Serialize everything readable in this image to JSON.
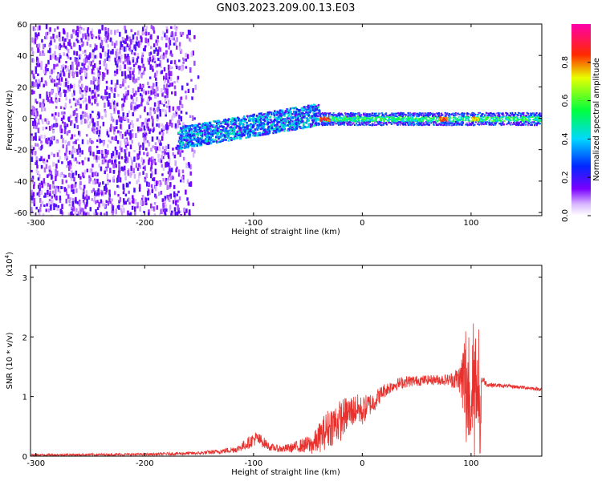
{
  "title": "GN03.2023.209.00.13.E03",
  "colors": {
    "snr_line": "#e8302c",
    "axes": "#000000"
  },
  "chart_data": [
    {
      "type": "heatmap",
      "title": "GN03.2023.209.00.13.E03",
      "xlabel": "Height of straight line (km)",
      "ylabel": "Frequency (Hz)",
      "xlim": [
        -305,
        165
      ],
      "ylim": [
        -62,
        60
      ],
      "x_ticks": [
        -300,
        -200,
        -100,
        0,
        100
      ],
      "x_tick_labels": [
        "-300",
        "-200",
        "-100",
        "0",
        "100"
      ],
      "y_ticks": [
        60,
        40,
        20,
        0,
        -20,
        -40,
        -60
      ],
      "y_tick_labels": [
        "60",
        "40",
        "20",
        "0",
        "-20",
        "-40",
        "-60"
      ],
      "colorbar": {
        "label": "Normalized spectral amplitude",
        "range": [
          0.0,
          1.0
        ],
        "ticks": [
          0.0,
          0.2,
          0.4,
          0.6,
          0.8
        ],
        "tick_labels": [
          "0.0",
          "0.2",
          "0.4",
          "0.6",
          "0.8"
        ],
        "colormap": "rainbow (white → violet → blue → cyan → green → yellow → red → magenta)"
      },
      "description_regions": [
        {
          "x_range": [
            -305,
            -150
          ],
          "pattern": "broadband scattered noise across all frequencies",
          "amplitude": 0.15
        },
        {
          "x_range": [
            -170,
            -40
          ],
          "pattern": "tilted band rising from about -12 Hz to about +3 Hz",
          "amplitude": 0.35
        },
        {
          "x_range": [
            -40,
            165
          ],
          "pattern": "narrow band centered near 0 Hz",
          "amplitude": 0.45
        },
        {
          "x_range": [
            -40,
            -30
          ],
          "pattern": "peak near 0 Hz",
          "amplitude": 0.9
        },
        {
          "x_range": [
            70,
            78
          ],
          "pattern": "peak near 0 Hz",
          "amplitude": 0.85
        },
        {
          "x_range": [
            100,
            106
          ],
          "pattern": "peak near 0 Hz",
          "amplitude": 0.8
        }
      ]
    },
    {
      "type": "line",
      "xlabel": "Height of straight line (km)",
      "ylabel": "SNR (10 * v/v)",
      "y_multiplier_label": "(x10",
      "y_multiplier_exponent": "4",
      "xlim": [
        -305,
        165
      ],
      "ylim": [
        0,
        3.2
      ],
      "x_ticks": [
        -300,
        -200,
        -100,
        0,
        100
      ],
      "x_tick_labels": [
        "-300",
        "-200",
        "-100",
        "0",
        "100"
      ],
      "y_ticks": [
        0,
        1,
        2,
        3
      ],
      "y_tick_labels": [
        "0",
        "1",
        "2",
        "3"
      ],
      "series": [
        {
          "color": "#e8302c",
          "x": [
            -305,
            -200,
            -150,
            -130,
            -115,
            -105,
            -98,
            -92,
            -85,
            -75,
            -65,
            -55,
            -45,
            -40,
            -35,
            -30,
            -25,
            -20,
            -15,
            -10,
            -5,
            0,
            5,
            10,
            15,
            20,
            30,
            40,
            60,
            80,
            90,
            95,
            100,
            105,
            108,
            110,
            115,
            130,
            150,
            165
          ],
          "y": [
            0.02,
            0.03,
            0.05,
            0.08,
            0.12,
            0.22,
            0.3,
            0.25,
            0.15,
            0.12,
            0.14,
            0.18,
            0.2,
            0.3,
            0.4,
            0.5,
            0.55,
            0.6,
            0.7,
            0.75,
            0.8,
            0.75,
            0.85,
            0.9,
            1.0,
            1.1,
            1.2,
            1.25,
            1.28,
            1.28,
            1.3,
            1.2,
            0.9,
            0.6,
            0.5,
            1.3,
            1.2,
            1.18,
            1.15,
            1.12
          ],
          "noise_envelope": [
            0.02,
            0.02,
            0.03,
            0.04,
            0.06,
            0.1,
            0.12,
            0.1,
            0.06,
            0.06,
            0.08,
            0.12,
            0.18,
            0.25,
            0.3,
            0.35,
            0.35,
            0.35,
            0.3,
            0.28,
            0.25,
            0.25,
            0.2,
            0.18,
            0.15,
            0.12,
            0.1,
            0.1,
            0.08,
            0.1,
            0.25,
            1.2,
            1.6,
            1.4,
            1.9,
            0.08,
            0.04,
            0.03,
            0.03,
            0.03
          ]
        }
      ]
    }
  ]
}
